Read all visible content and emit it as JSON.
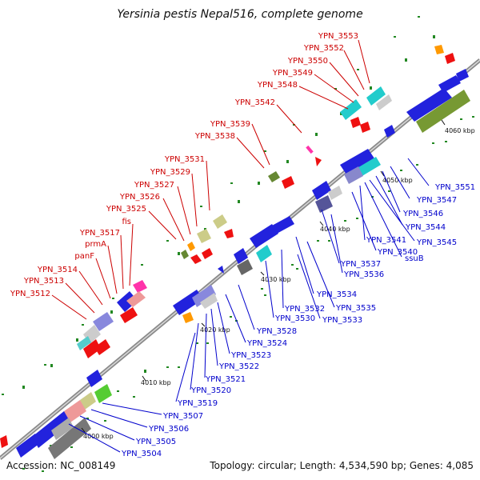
{
  "title": "Yersinia pestis Nepal516, complete genome",
  "footer": {
    "accession": "Accession: NC_008149",
    "topology": "Topology: circular; Length: 4,534,590 bp; Genes: 4,085"
  },
  "colors": {
    "backbone": "#8a8a8a",
    "forward_label": "#cc0000",
    "reverse_label": "#0000cc",
    "gc_tick": "#228822"
  },
  "ticks": [
    "4000 kbp",
    "4010 kbp",
    "4020 kbp",
    "4030 kbp",
    "4040 kbp",
    "4050 kbp",
    "4060 kbp"
  ],
  "forward_labels": [
    "YPN_3553",
    "YPN_3552",
    "YPN_3550",
    "YPN_3549",
    "YPN_3548",
    "YPN_3542",
    "YPN_3539",
    "YPN_3538",
    "YPN_3531",
    "YPN_3529",
    "YPN_3527",
    "YPN_3526",
    "YPN_3525",
    "fis",
    "YPN_3517",
    "prmA",
    "panF",
    "YPN_3514",
    "YPN_3513",
    "YPN_3512"
  ],
  "reverse_labels": [
    "YPN_3551",
    "YPN_3547",
    "YPN_3546",
    "YPN_3544",
    "YPN_3545",
    "YPN_3541",
    "ssuB",
    "YPN_3540",
    "YPN_3537",
    "YPN_3536",
    "YPN_3534",
    "YPN_3535",
    "YPN_3532",
    "YPN_3533",
    "YPN_3530",
    "YPN_3528",
    "YPN_3524",
    "YPN_3523",
    "YPN_3522",
    "YPN_3521",
    "YPN_3520",
    "YPN_3519",
    "YPN_3507",
    "YPN_3506",
    "YPN_3505",
    "YPN_3504"
  ]
}
